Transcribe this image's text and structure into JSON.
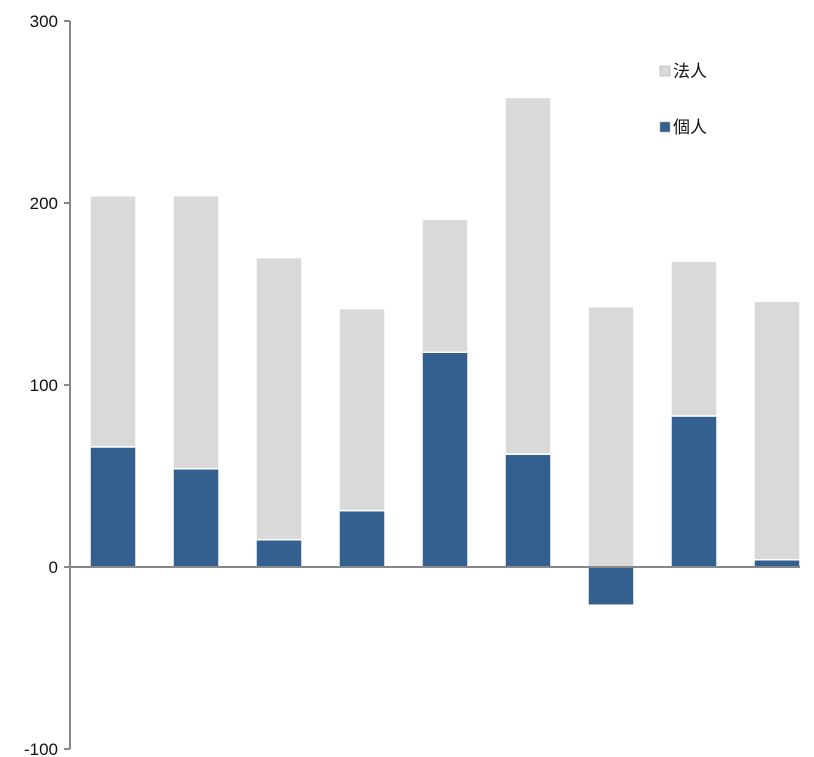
{
  "chart_data": {
    "type": "bar",
    "stacked": true,
    "title": "",
    "xlabel": "",
    "ylabel": "",
    "ylim": [
      -100,
      300
    ],
    "yticks": [
      300,
      200,
      100,
      0,
      -100
    ],
    "grid": false,
    "legend": {
      "position": "top-right",
      "order": [
        "法人",
        "個人"
      ]
    },
    "categories": [
      "",
      "",
      "",
      "",
      "",
      "",
      "",
      "",
      ""
    ],
    "series": [
      {
        "name": "個人",
        "color": "#34608f",
        "values": [
          66,
          54,
          15,
          31,
          118,
          62,
          -21,
          83,
          4
        ]
      },
      {
        "name": "法人",
        "color": "#d9d9d9",
        "values": [
          138,
          150,
          155,
          111,
          73,
          196,
          143,
          85,
          142
        ]
      }
    ]
  }
}
